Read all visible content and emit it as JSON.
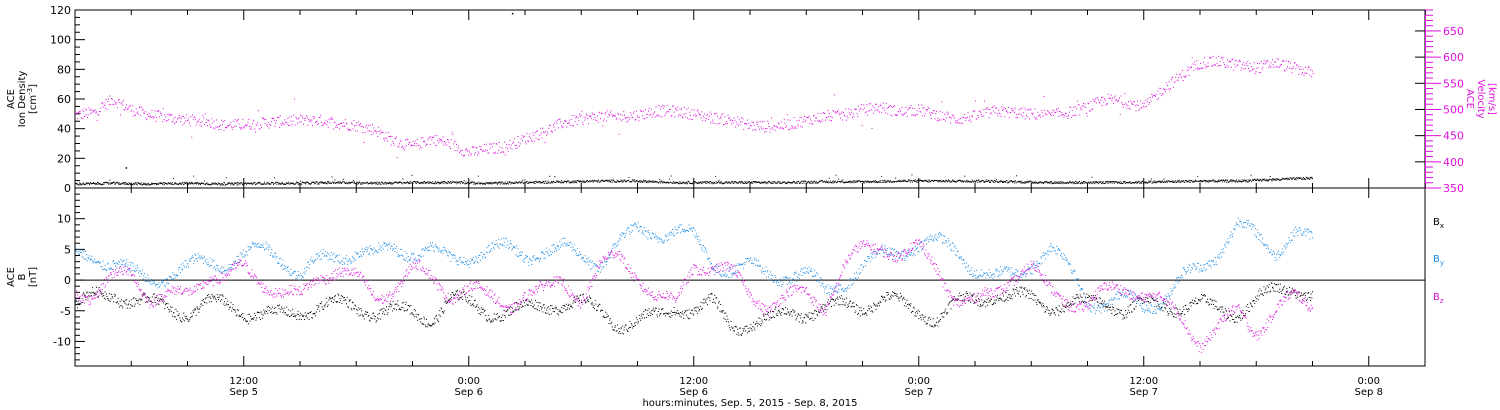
{
  "chart_data": [
    {
      "type": "scatter",
      "panel": "top",
      "ylabel": [
        "ACE",
        "Ion Density",
        "[cm",
        "-3",
        "]"
      ],
      "ylim": [
        0,
        120
      ],
      "yticks": [
        0,
        20,
        40,
        60,
        80,
        100,
        120
      ],
      "ylabel_right": [
        "ACE",
        "Velocity",
        "[km/s]"
      ],
      "ylim_right": [
        350,
        690
      ],
      "yticks_right": [
        350,
        400,
        450,
        500,
        550,
        600,
        650
      ],
      "right_axis_color": "#dd11dd",
      "xlim_hours": [
        0,
        72
      ],
      "series": [
        {
          "color": "#000000",
          "axis": "left",
          "x": [
            0,
            2,
            4,
            6,
            8,
            10,
            12,
            14,
            16,
            18,
            20,
            22,
            24,
            26,
            28,
            30,
            32,
            34,
            36,
            38,
            40,
            42,
            44,
            46,
            48,
            50,
            52,
            54,
            56,
            58,
            60,
            62,
            64,
            66
          ],
          "y": [
            3,
            3.5,
            3,
            3.5,
            3,
            3.5,
            3.5,
            4,
            3.5,
            4,
            4,
            3.5,
            4,
            4.5,
            5,
            5,
            4,
            4,
            4,
            4,
            4.5,
            4.5,
            5,
            5,
            5,
            4.5,
            4,
            4,
            4,
            4.5,
            5,
            5,
            6,
            7
          ]
        },
        {
          "color": "#dd11dd",
          "axis": "right",
          "x": [
            0,
            1,
            2,
            3,
            4,
            5,
            6,
            7,
            8,
            9,
            10,
            11,
            12,
            13,
            14,
            15,
            16,
            17,
            18,
            19,
            20,
            21,
            22,
            23,
            24,
            25,
            26,
            27,
            28,
            29,
            30,
            31,
            32,
            33,
            34,
            35,
            36,
            37,
            38,
            39,
            40,
            41,
            42,
            43,
            44,
            45,
            46,
            47,
            48,
            49,
            50,
            51,
            52,
            53,
            54,
            55,
            56,
            57,
            58,
            59,
            60,
            61,
            62,
            63,
            64,
            65,
            66
          ],
          "y": [
            490,
            495,
            520,
            500,
            490,
            485,
            480,
            478,
            470,
            472,
            475,
            478,
            480,
            480,
            475,
            470,
            462,
            440,
            430,
            445,
            435,
            418,
            425,
            430,
            445,
            458,
            475,
            482,
            488,
            487,
            490,
            498,
            497,
            492,
            485,
            480,
            470,
            468,
            472,
            480,
            488,
            490,
            500,
            505,
            495,
            500,
            490,
            482,
            488,
            497,
            495,
            492,
            490,
            495,
            505,
            520,
            515,
            505,
            540,
            565,
            590,
            592,
            585,
            580,
            590,
            580,
            570
          ]
        }
      ]
    },
    {
      "type": "scatter",
      "panel": "bottom",
      "ylabel": [
        "ACE",
        "B",
        "[nT]"
      ],
      "ylim": [
        -14,
        15
      ],
      "yticks": [
        -10,
        -5,
        0,
        5,
        10
      ],
      "zero_line": true,
      "xlim_hours": [
        0,
        72
      ],
      "series": [
        {
          "name": "B",
          "sub": "x",
          "color": "#000000",
          "x": [
            0,
            1,
            2,
            3,
            4,
            5,
            6,
            7,
            8,
            9,
            10,
            11,
            12,
            13,
            14,
            15,
            16,
            17,
            18,
            19,
            20,
            21,
            22,
            23,
            24,
            25,
            26,
            27,
            28,
            29,
            30,
            31,
            32,
            33,
            34,
            35,
            36,
            37,
            38,
            39,
            40,
            41,
            42,
            43,
            44,
            45,
            46,
            47,
            48,
            49,
            50,
            51,
            52,
            53,
            54,
            55,
            56,
            57,
            58,
            59,
            60,
            61,
            62,
            63,
            64,
            65,
            66
          ],
          "y": [
            -4,
            -3,
            -2,
            -3,
            -4,
            -4.5,
            -5,
            -4,
            -4,
            -5,
            -5.5,
            -6,
            -5,
            -4,
            -4,
            -4.5,
            -5,
            -5,
            -5.5,
            -6,
            -3,
            -4,
            -5,
            -5,
            -5,
            -4,
            -3.5,
            -4,
            -5,
            -7,
            -7,
            -6,
            -4,
            -5,
            -4,
            -7,
            -7,
            -7,
            -5,
            -5,
            -5,
            -4,
            -4,
            -3,
            -4,
            -5,
            -6,
            -4,
            -3,
            -2,
            -3,
            -3,
            -4,
            -4,
            -4,
            -3,
            -5,
            -4,
            -4,
            -4,
            -4,
            -5,
            -5,
            -3,
            -2,
            -1,
            -2
          ]
        },
        {
          "name": "B",
          "sub": "y",
          "color": "#1f8ee6",
          "x": [
            0,
            1,
            2,
            3,
            4,
            5,
            6,
            7,
            8,
            9,
            10,
            11,
            12,
            13,
            14,
            15,
            16,
            17,
            18,
            19,
            20,
            21,
            22,
            23,
            24,
            25,
            26,
            27,
            28,
            29,
            30,
            31,
            32,
            33,
            34,
            35,
            36,
            37,
            38,
            39,
            40,
            41,
            42,
            43,
            44,
            45,
            46,
            47,
            48,
            49,
            50,
            51,
            52,
            53,
            54,
            55,
            56,
            57,
            58,
            59,
            60,
            61,
            62,
            63,
            64,
            65,
            66
          ],
          "y": [
            4,
            4,
            3,
            1,
            0,
            1,
            2,
            3,
            3,
            4,
            5,
            4,
            1,
            3,
            4,
            5,
            4,
            5,
            5,
            5,
            3,
            4,
            5,
            5,
            4,
            5,
            5,
            4,
            3,
            6,
            8,
            8,
            8,
            7,
            3,
            2,
            2,
            1,
            1,
            1,
            -2,
            0,
            2,
            4,
            5,
            6,
            6,
            5,
            2,
            0,
            1,
            3,
            5,
            2,
            -3,
            -4,
            -3,
            -4,
            -3,
            0,
            2,
            5,
            9,
            7,
            5,
            8,
            6
          ]
        },
        {
          "name": "B",
          "sub": "z",
          "color": "#dd11dd",
          "x": [
            0,
            1,
            2,
            3,
            4,
            5,
            6,
            7,
            8,
            9,
            10,
            11,
            12,
            13,
            14,
            15,
            16,
            17,
            18,
            19,
            20,
            21,
            22,
            23,
            24,
            25,
            26,
            27,
            28,
            29,
            30,
            31,
            32,
            33,
            34,
            35,
            36,
            37,
            38,
            39,
            40,
            41,
            42,
            43,
            44,
            45,
            46,
            47,
            48,
            49,
            50,
            51,
            52,
            53,
            54,
            55,
            56,
            57,
            58,
            59,
            60,
            61,
            62,
            63,
            64,
            65,
            66
          ],
          "y": [
            -1,
            -3,
            0,
            2,
            -3,
            -3,
            -2,
            1,
            0,
            2,
            0,
            -2,
            -3,
            1,
            2,
            0,
            -3,
            -1,
            2,
            0,
            -2,
            -1,
            -3,
            -4,
            -2,
            -2,
            0,
            -3,
            2,
            4,
            1,
            -3,
            -4,
            3,
            2,
            1,
            -2,
            -4,
            -3,
            -2,
            -4,
            2,
            5,
            6,
            4,
            5,
            2,
            -3,
            -4,
            -2,
            1,
            2,
            -2,
            -3,
            -4,
            -2,
            -1,
            -2,
            -4,
            -6,
            -10,
            -8,
            -5,
            -8,
            -5,
            -3,
            -4
          ]
        }
      ]
    }
  ],
  "x_axis": {
    "ticks": [
      {
        "hours": 9,
        "time": "12:00",
        "date": "Sep 5"
      },
      {
        "hours": 21,
        "time": "0:00",
        "date": "Sep 6"
      },
      {
        "hours": 33,
        "time": "12:00",
        "date": "Sep 6"
      },
      {
        "hours": 45,
        "time": "0:00",
        "date": "Sep 7"
      },
      {
        "hours": 57,
        "time": "12:00",
        "date": "Sep 7"
      },
      {
        "hours": 69,
        "time": "0:00",
        "date": "Sep 8"
      }
    ],
    "title": "hours:minutes, Sep.  5, 2015 - Sep.  8, 2015"
  },
  "stray_points": [
    {
      "series": "density",
      "hours": 23.3,
      "value": 118
    },
    {
      "series": "density",
      "hours": 2.7,
      "value": 14
    }
  ]
}
